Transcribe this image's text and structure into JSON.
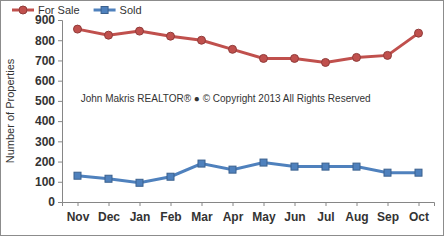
{
  "chart_data": {
    "type": "line",
    "categories": [
      "Nov",
      "Dec",
      "Jan",
      "Feb",
      "Mar",
      "Apr",
      "May",
      "Jun",
      "Jul",
      "Aug",
      "Sep",
      "Oct"
    ],
    "series": [
      {
        "name": "For Sale",
        "color": "#c0504d",
        "marker": "circle",
        "values": [
          855,
          825,
          845,
          820,
          800,
          755,
          710,
          710,
          690,
          715,
          725,
          835
        ]
      },
      {
        "name": "Sold",
        "color": "#4f81bd",
        "marker": "square",
        "values": [
          130,
          115,
          95,
          125,
          190,
          160,
          195,
          175,
          175,
          175,
          145,
          145
        ]
      }
    ],
    "y_label": "Number of Properties",
    "annotations": [
      "John Makris REALTOR®  ●  © Copyright 2013 All Rights Reserved"
    ],
    "ylim": [
      0,
      900
    ],
    "yticks": [
      0,
      100,
      200,
      300,
      400,
      500,
      600,
      700,
      800,
      900
    ],
    "grid": false,
    "legend": "top-left"
  }
}
